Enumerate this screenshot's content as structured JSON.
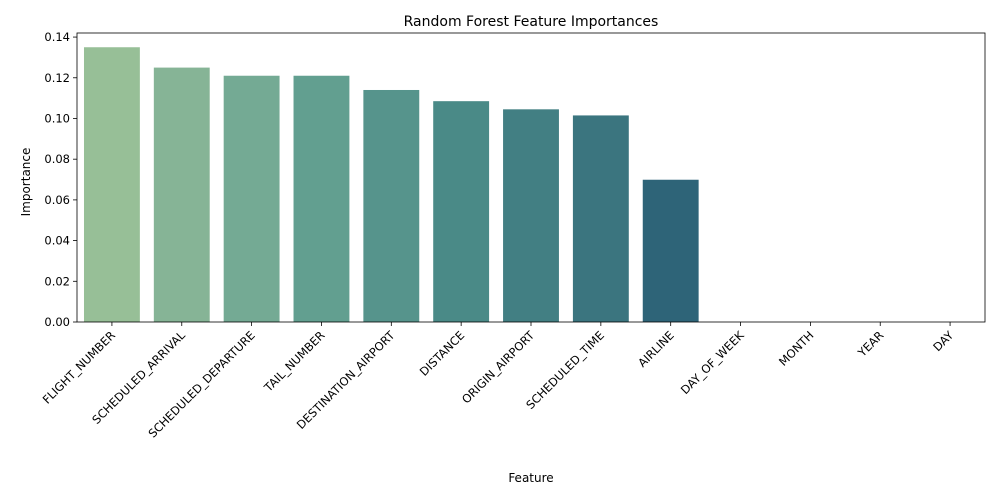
{
  "chart_data": {
    "type": "bar",
    "title": "Random Forest Feature Importances",
    "xlabel": "Feature",
    "ylabel": "Importance",
    "categories": [
      "FLIGHT_NUMBER",
      "SCHEDULED_ARRIVAL",
      "SCHEDULED_DEPARTURE",
      "TAIL_NUMBER",
      "DESTINATION_AIRPORT",
      "DISTANCE",
      "ORIGIN_AIRPORT",
      "SCHEDULED_TIME",
      "AIRLINE",
      "DAY_OF_WEEK",
      "MONTH",
      "YEAR",
      "DAY"
    ],
    "values": [
      0.135,
      0.125,
      0.121,
      0.121,
      0.114,
      0.1085,
      0.1045,
      0.1015,
      0.0699,
      0.0,
      0.0,
      0.0,
      0.0
    ],
    "colors": [
      "#97bf97",
      "#86b496",
      "#74aa94",
      "#629f90",
      "#56948c",
      "#4a8a87",
      "#427f83",
      "#3b757f",
      "#2e6478",
      "#285d74",
      "#245570",
      "#204d6b",
      "#1c4567"
    ],
    "ylim": [
      0,
      0.142
    ],
    "yticks": [
      "0.00",
      "0.02",
      "0.04",
      "0.06",
      "0.08",
      "0.10",
      "0.12",
      "0.14"
    ],
    "grid": false,
    "legend": "none"
  }
}
